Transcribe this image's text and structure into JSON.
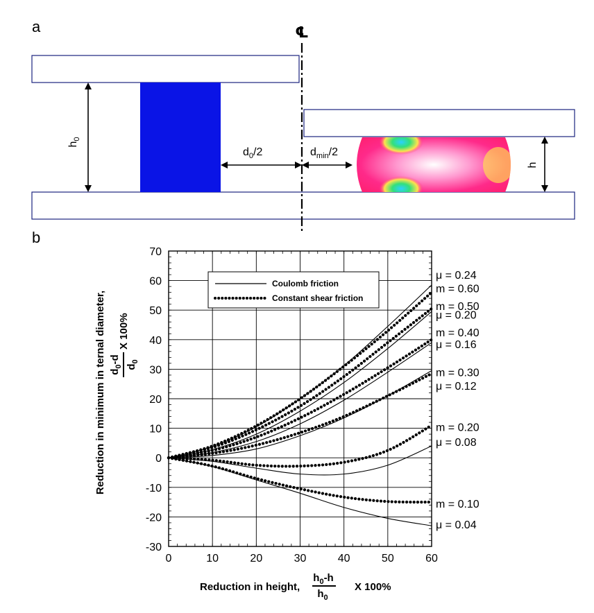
{
  "panel_a": {
    "letter": "a",
    "centerline_symbol": "℄",
    "labels": {
      "h0": "h",
      "h0_sub": "0",
      "d0": "d",
      "d0_sub": "0",
      "d0_tail": "/2",
      "dmin": "d",
      "dmin_sub": "min",
      "dmin_tail": "/2",
      "h": "h"
    },
    "colors": {
      "billet": "#0a14e6",
      "platen_stroke": "#1a237e",
      "barrel": "#ff2a8a"
    }
  },
  "panel_b": {
    "letter": "b"
  },
  "chart_data": {
    "type": "line",
    "xlim": [
      0,
      60
    ],
    "ylim": [
      -30,
      70
    ],
    "xticks": [
      0,
      10,
      20,
      30,
      40,
      50,
      60
    ],
    "yticks": [
      -30,
      -20,
      -10,
      0,
      10,
      20,
      30,
      40,
      50,
      60,
      70
    ],
    "grid": true,
    "xlabel": {
      "text": "Reduction in height,",
      "num": "h",
      "num_sub": "0",
      "num_tail": "-h",
      "den": "h",
      "den_sub": "0",
      "tail": "X 100%"
    },
    "ylabel": {
      "text": "Reduction in minimum in ternal diameter,",
      "num": "d",
      "num_sub": "0",
      "num_tail": "-d",
      "den": "d",
      "den_sub": "0",
      "tail": "X 100%"
    },
    "legend": {
      "placement": "top-left",
      "entries": [
        {
          "label": "Coulomb friction",
          "style": "solid"
        },
        {
          "label": "Constant shear friction",
          "style": "dotted"
        }
      ]
    },
    "series": [
      {
        "label": "μ = 0.24",
        "style": "solid",
        "points": [
          [
            0,
            0
          ],
          [
            10,
            3.8
          ],
          [
            20,
            10.5
          ],
          [
            30,
            20
          ],
          [
            40,
            31.2
          ],
          [
            50,
            44.5
          ],
          [
            60,
            58.5
          ]
        ]
      },
      {
        "label": "μ = 0.20",
        "style": "solid",
        "points": [
          [
            0,
            0
          ],
          [
            10,
            2.8
          ],
          [
            20,
            8
          ],
          [
            30,
            15.8
          ],
          [
            40,
            25.5
          ],
          [
            50,
            37
          ],
          [
            60,
            49.5
          ]
        ]
      },
      {
        "label": "μ = 0.16",
        "style": "solid",
        "points": [
          [
            0,
            0
          ],
          [
            10,
            1.8
          ],
          [
            20,
            5.5
          ],
          [
            30,
            11.5
          ],
          [
            40,
            19.5
          ],
          [
            50,
            29
          ],
          [
            60,
            39
          ]
        ]
      },
      {
        "label": "μ = 0.12",
        "style": "solid",
        "points": [
          [
            0,
            0
          ],
          [
            10,
            0.8
          ],
          [
            20,
            3
          ],
          [
            30,
            7.5
          ],
          [
            40,
            13.5
          ],
          [
            50,
            21
          ],
          [
            60,
            29.5
          ]
        ]
      },
      {
        "label": "μ = 0.08",
        "style": "solid",
        "points": [
          [
            0,
            0
          ],
          [
            10,
            -1.2
          ],
          [
            20,
            -3.5
          ],
          [
            30,
            -5.5
          ],
          [
            40,
            -5.5
          ],
          [
            50,
            -2.5
          ],
          [
            60,
            4
          ]
        ]
      },
      {
        "label": "μ = 0.04",
        "style": "solid",
        "points": [
          [
            0,
            0
          ],
          [
            10,
            -3
          ],
          [
            20,
            -7.5
          ],
          [
            30,
            -12
          ],
          [
            40,
            -16.8
          ],
          [
            50,
            -20.5
          ],
          [
            60,
            -23
          ]
        ]
      },
      {
        "label": "m = 0.60",
        "style": "dotted",
        "points": [
          [
            0,
            0
          ],
          [
            10,
            4
          ],
          [
            20,
            10.8
          ],
          [
            30,
            20
          ],
          [
            40,
            31
          ],
          [
            50,
            43
          ],
          [
            60,
            56
          ]
        ]
      },
      {
        "label": "m = 0.50",
        "style": "dotted",
        "points": [
          [
            0,
            0
          ],
          [
            10,
            3.5
          ],
          [
            20,
            9.5
          ],
          [
            30,
            17.5
          ],
          [
            40,
            27.5
          ],
          [
            50,
            39
          ],
          [
            60,
            50.5
          ]
        ]
      },
      {
        "label": "m = 0.40",
        "style": "dotted",
        "points": [
          [
            0,
            0
          ],
          [
            10,
            2.5
          ],
          [
            20,
            7
          ],
          [
            30,
            13.5
          ],
          [
            40,
            21.5
          ],
          [
            50,
            30.5
          ],
          [
            60,
            40
          ]
        ]
      },
      {
        "label": "m = 0.30",
        "style": "dotted",
        "points": [
          [
            0,
            0
          ],
          [
            10,
            1.5
          ],
          [
            20,
            4.3
          ],
          [
            30,
            8.5
          ],
          [
            40,
            14
          ],
          [
            50,
            21
          ],
          [
            60,
            28.5
          ]
        ]
      },
      {
        "label": "m = 0.20",
        "style": "dotted",
        "points": [
          [
            0,
            0
          ],
          [
            10,
            -0.8
          ],
          [
            20,
            -2.5
          ],
          [
            30,
            -2.8
          ],
          [
            40,
            -1.5
          ],
          [
            50,
            2.5
          ],
          [
            60,
            11
          ]
        ]
      },
      {
        "label": "m = 0.10",
        "style": "dotted",
        "points": [
          [
            0,
            0
          ],
          [
            10,
            -2.8
          ],
          [
            20,
            -7
          ],
          [
            30,
            -10.5
          ],
          [
            40,
            -13.3
          ],
          [
            50,
            -14.8
          ],
          [
            60,
            -15
          ]
        ]
      }
    ],
    "right_labels": [
      {
        "text": "μ = 0.24",
        "y": 62
      },
      {
        "text": "m = 0.60",
        "y": 57.5
      },
      {
        "text": "m = 0.50",
        "y": 51.5
      },
      {
        "text": "μ = 0.20",
        "y": 48.5
      },
      {
        "text": "m = 0.40",
        "y": 42.5
      },
      {
        "text": "μ = 0.16",
        "y": 38.5
      },
      {
        "text": "m = 0.30",
        "y": 29
      },
      {
        "text": "μ = 0.12",
        "y": 24.5
      },
      {
        "text": "m = 0.20",
        "y": 10.5
      },
      {
        "text": "μ = 0.08",
        "y": 5.5
      },
      {
        "text": "m = 0.10",
        "y": -15.5
      },
      {
        "text": "μ = 0.04",
        "y": -22.5
      }
    ]
  }
}
